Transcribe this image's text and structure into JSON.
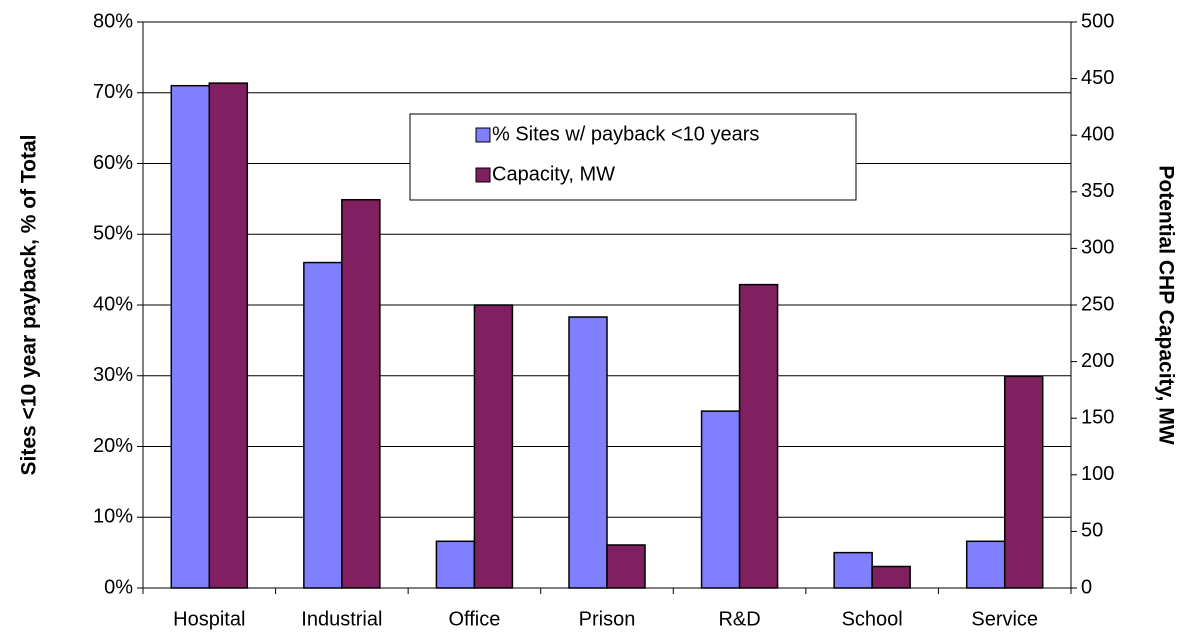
{
  "chart_data": {
    "type": "bar",
    "categories": [
      "Hospital",
      "Industrial",
      "Office",
      "Prison",
      "R&D",
      "School",
      "Service"
    ],
    "series": [
      {
        "name": "% Sites w/ payback <10 years",
        "color": "#8080ff",
        "values": [
          71,
          46,
          6.6,
          38.3,
          25,
          5,
          6.6
        ]
      },
      {
        "name": "Capacity, MW",
        "color": "#802060",
        "axis": "y2",
        "values": [
          446,
          343,
          250,
          38,
          268,
          19,
          187
        ]
      }
    ],
    "ylabel": "Sites <10 year payback, % of Total",
    "y2label": "Potential CHP Capacity, MW",
    "ylim": [
      0,
      80
    ],
    "yticks": [
      {
        "value": 0,
        "label": "0%"
      },
      {
        "value": 10,
        "label": "10%"
      },
      {
        "value": 20,
        "label": "20%"
      },
      {
        "value": 30,
        "label": "30%"
      },
      {
        "value": 40,
        "label": "40%"
      },
      {
        "value": 50,
        "label": "50%"
      },
      {
        "value": 60,
        "label": "60%"
      },
      {
        "value": 70,
        "label": "70%"
      },
      {
        "value": 80,
        "label": "80%"
      }
    ],
    "y2lim": [
      0,
      500
    ],
    "y2ticks": [
      0,
      50,
      100,
      150,
      200,
      250,
      300,
      350,
      400,
      450,
      500
    ],
    "grid": true,
    "legend": "top"
  }
}
